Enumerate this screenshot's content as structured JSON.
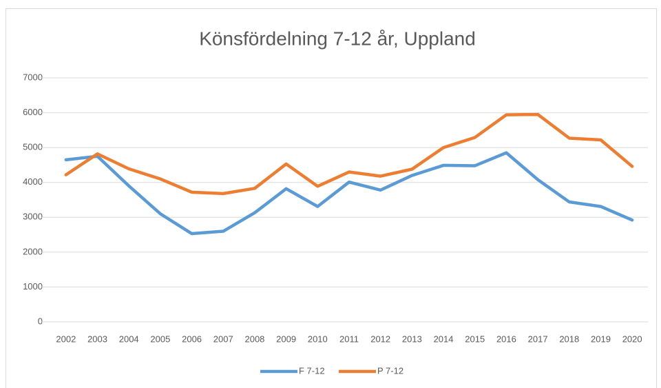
{
  "chart_data": {
    "type": "line",
    "title": "Könsfördelning 7-12 år, Uppland",
    "categories": [
      "2002",
      "2003",
      "2004",
      "2005",
      "2006",
      "2007",
      "2008",
      "2009",
      "2010",
      "2011",
      "2012",
      "2013",
      "2014",
      "2015",
      "2016",
      "2017",
      "2018",
      "2019",
      "2020"
    ],
    "series": [
      {
        "name": "F 7-12",
        "color": "#5b9bd5",
        "values": [
          4650,
          4750,
          3900,
          3100,
          2530,
          2600,
          3130,
          3820,
          3310,
          4010,
          3780,
          4200,
          4490,
          4480,
          4850,
          4080,
          3440,
          3310,
          2920
        ]
      },
      {
        "name": "P 7-12",
        "color": "#ed7d31",
        "values": [
          4220,
          4820,
          4390,
          4100,
          3720,
          3680,
          3830,
          4530,
          3890,
          4300,
          4180,
          4380,
          5000,
          5290,
          5940,
          5950,
          5270,
          5220,
          4460
        ]
      }
    ],
    "ylim": [
      0,
      7000
    ],
    "yticks": [
      0,
      1000,
      2000,
      3000,
      4000,
      5000,
      6000,
      7000
    ],
    "grid": true,
    "legend": "bottom"
  }
}
